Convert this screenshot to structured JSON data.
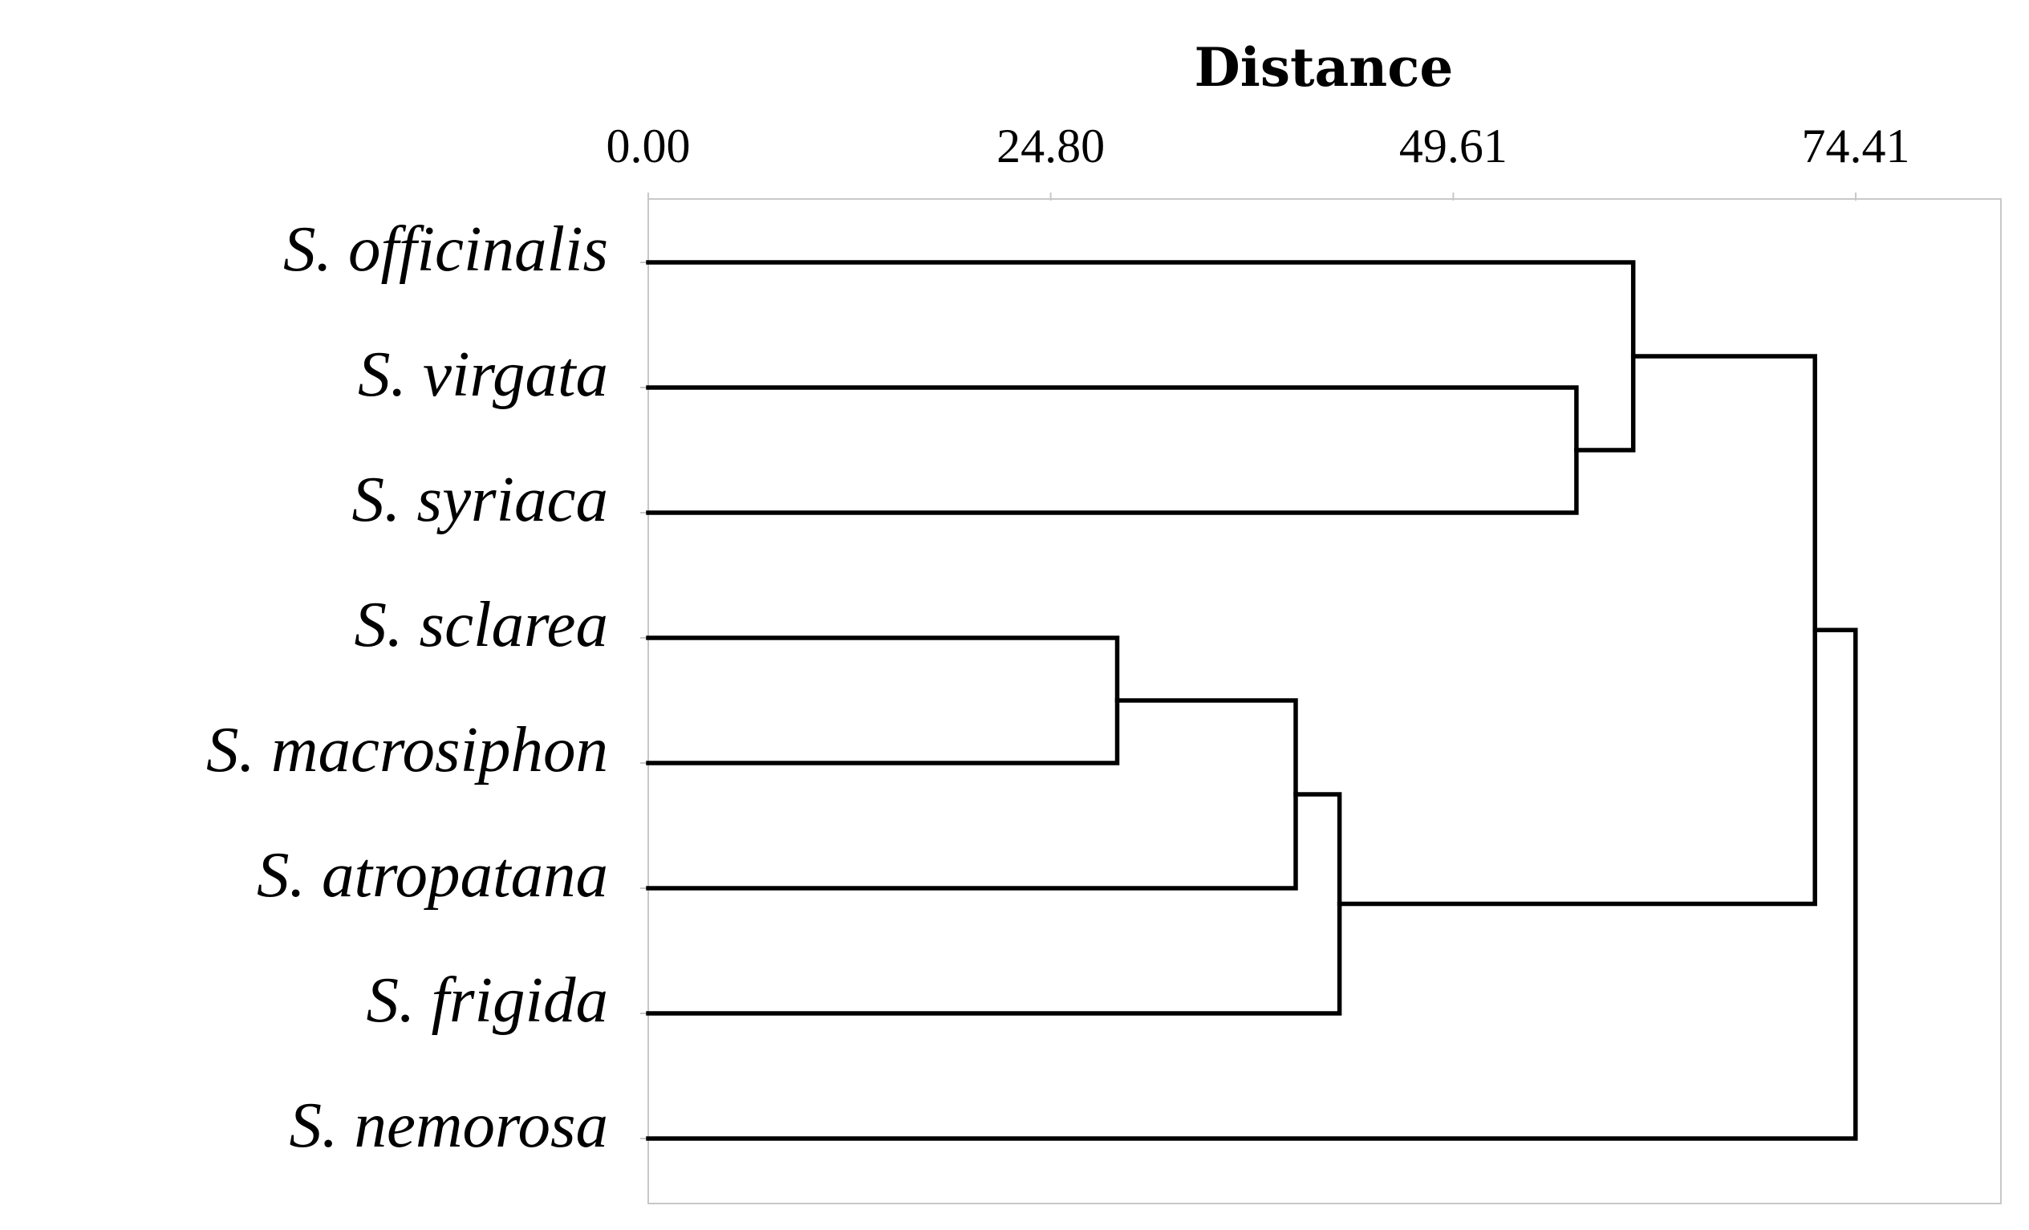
{
  "chart_data": {
    "type": "dendrogram",
    "title": "",
    "xlabel": "Distance",
    "xlim": [
      0,
      83.36
    ],
    "ticks": [
      {
        "value": 0.0,
        "label": "0.00"
      },
      {
        "value": 24.8,
        "label": "24.80"
      },
      {
        "value": 49.61,
        "label": "49.61"
      },
      {
        "value": 74.41,
        "label": "74.41"
      }
    ],
    "leaves": [
      "S. officinalis",
      "S. virgata",
      "S. syriaca",
      "S. sclarea",
      "S. macrosiphon",
      "S. atropatana",
      "S. frigida",
      "S. nemorosa"
    ],
    "merges": [
      {
        "id": "m1",
        "children": [
          "S. sclarea",
          "S. macrosiphon"
        ],
        "distance": 28.9
      },
      {
        "id": "m2",
        "children": [
          "m1",
          "S. atropatana"
        ],
        "distance": 39.9
      },
      {
        "id": "m3",
        "children": [
          "m2",
          "S. frigida"
        ],
        "distance": 42.6
      },
      {
        "id": "m4",
        "children": [
          "S. virgata",
          "S. syriaca"
        ],
        "distance": 57.2
      },
      {
        "id": "m5",
        "children": [
          "S. officinalis",
          "m4"
        ],
        "distance": 60.7
      },
      {
        "id": "m6",
        "children": [
          "m5",
          "m3"
        ],
        "distance": 71.9
      },
      {
        "id": "m7",
        "children": [
          "m6",
          "S. nemorosa"
        ],
        "distance": 74.4
      }
    ]
  }
}
